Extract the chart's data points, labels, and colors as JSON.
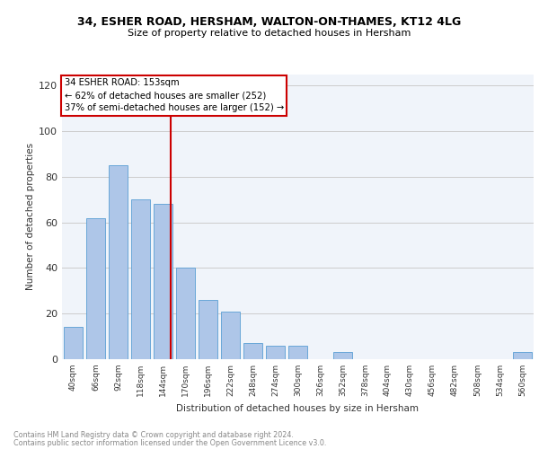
{
  "title1": "34, ESHER ROAD, HERSHAM, WALTON-ON-THAMES, KT12 4LG",
  "title2": "Size of property relative to detached houses in Hersham",
  "xlabel": "Distribution of detached houses by size in Hersham",
  "ylabel": "Number of detached properties",
  "footer1": "Contains HM Land Registry data © Crown copyright and database right 2024.",
  "footer2": "Contains public sector information licensed under the Open Government Licence v3.0.",
  "bar_labels": [
    "40sqm",
    "66sqm",
    "92sqm",
    "118sqm",
    "144sqm",
    "170sqm",
    "196sqm",
    "222sqm",
    "248sqm",
    "274sqm",
    "300sqm",
    "326sqm",
    "352sqm",
    "378sqm",
    "404sqm",
    "430sqm",
    "456sqm",
    "482sqm",
    "508sqm",
    "534sqm",
    "560sqm"
  ],
  "bar_values": [
    14,
    62,
    85,
    70,
    68,
    40,
    26,
    21,
    7,
    6,
    6,
    0,
    3,
    0,
    0,
    0,
    0,
    0,
    0,
    0,
    3
  ],
  "bar_color": "#aec6e8",
  "bar_edge_color": "#5a9fd4",
  "property_sqm": 153,
  "annotation_line1": "34 ESHER ROAD: 153sqm",
  "annotation_line2": "← 62% of detached houses are smaller (252)",
  "annotation_line3": "37% of semi-detached houses are larger (152) →",
  "vline_color": "#cc0000",
  "annotation_box_color": "#cc0000",
  "ylim": [
    0,
    125
  ],
  "yticks": [
    0,
    20,
    40,
    60,
    80,
    100,
    120
  ],
  "grid_color": "#cccccc",
  "bg_color": "#f0f4fa"
}
